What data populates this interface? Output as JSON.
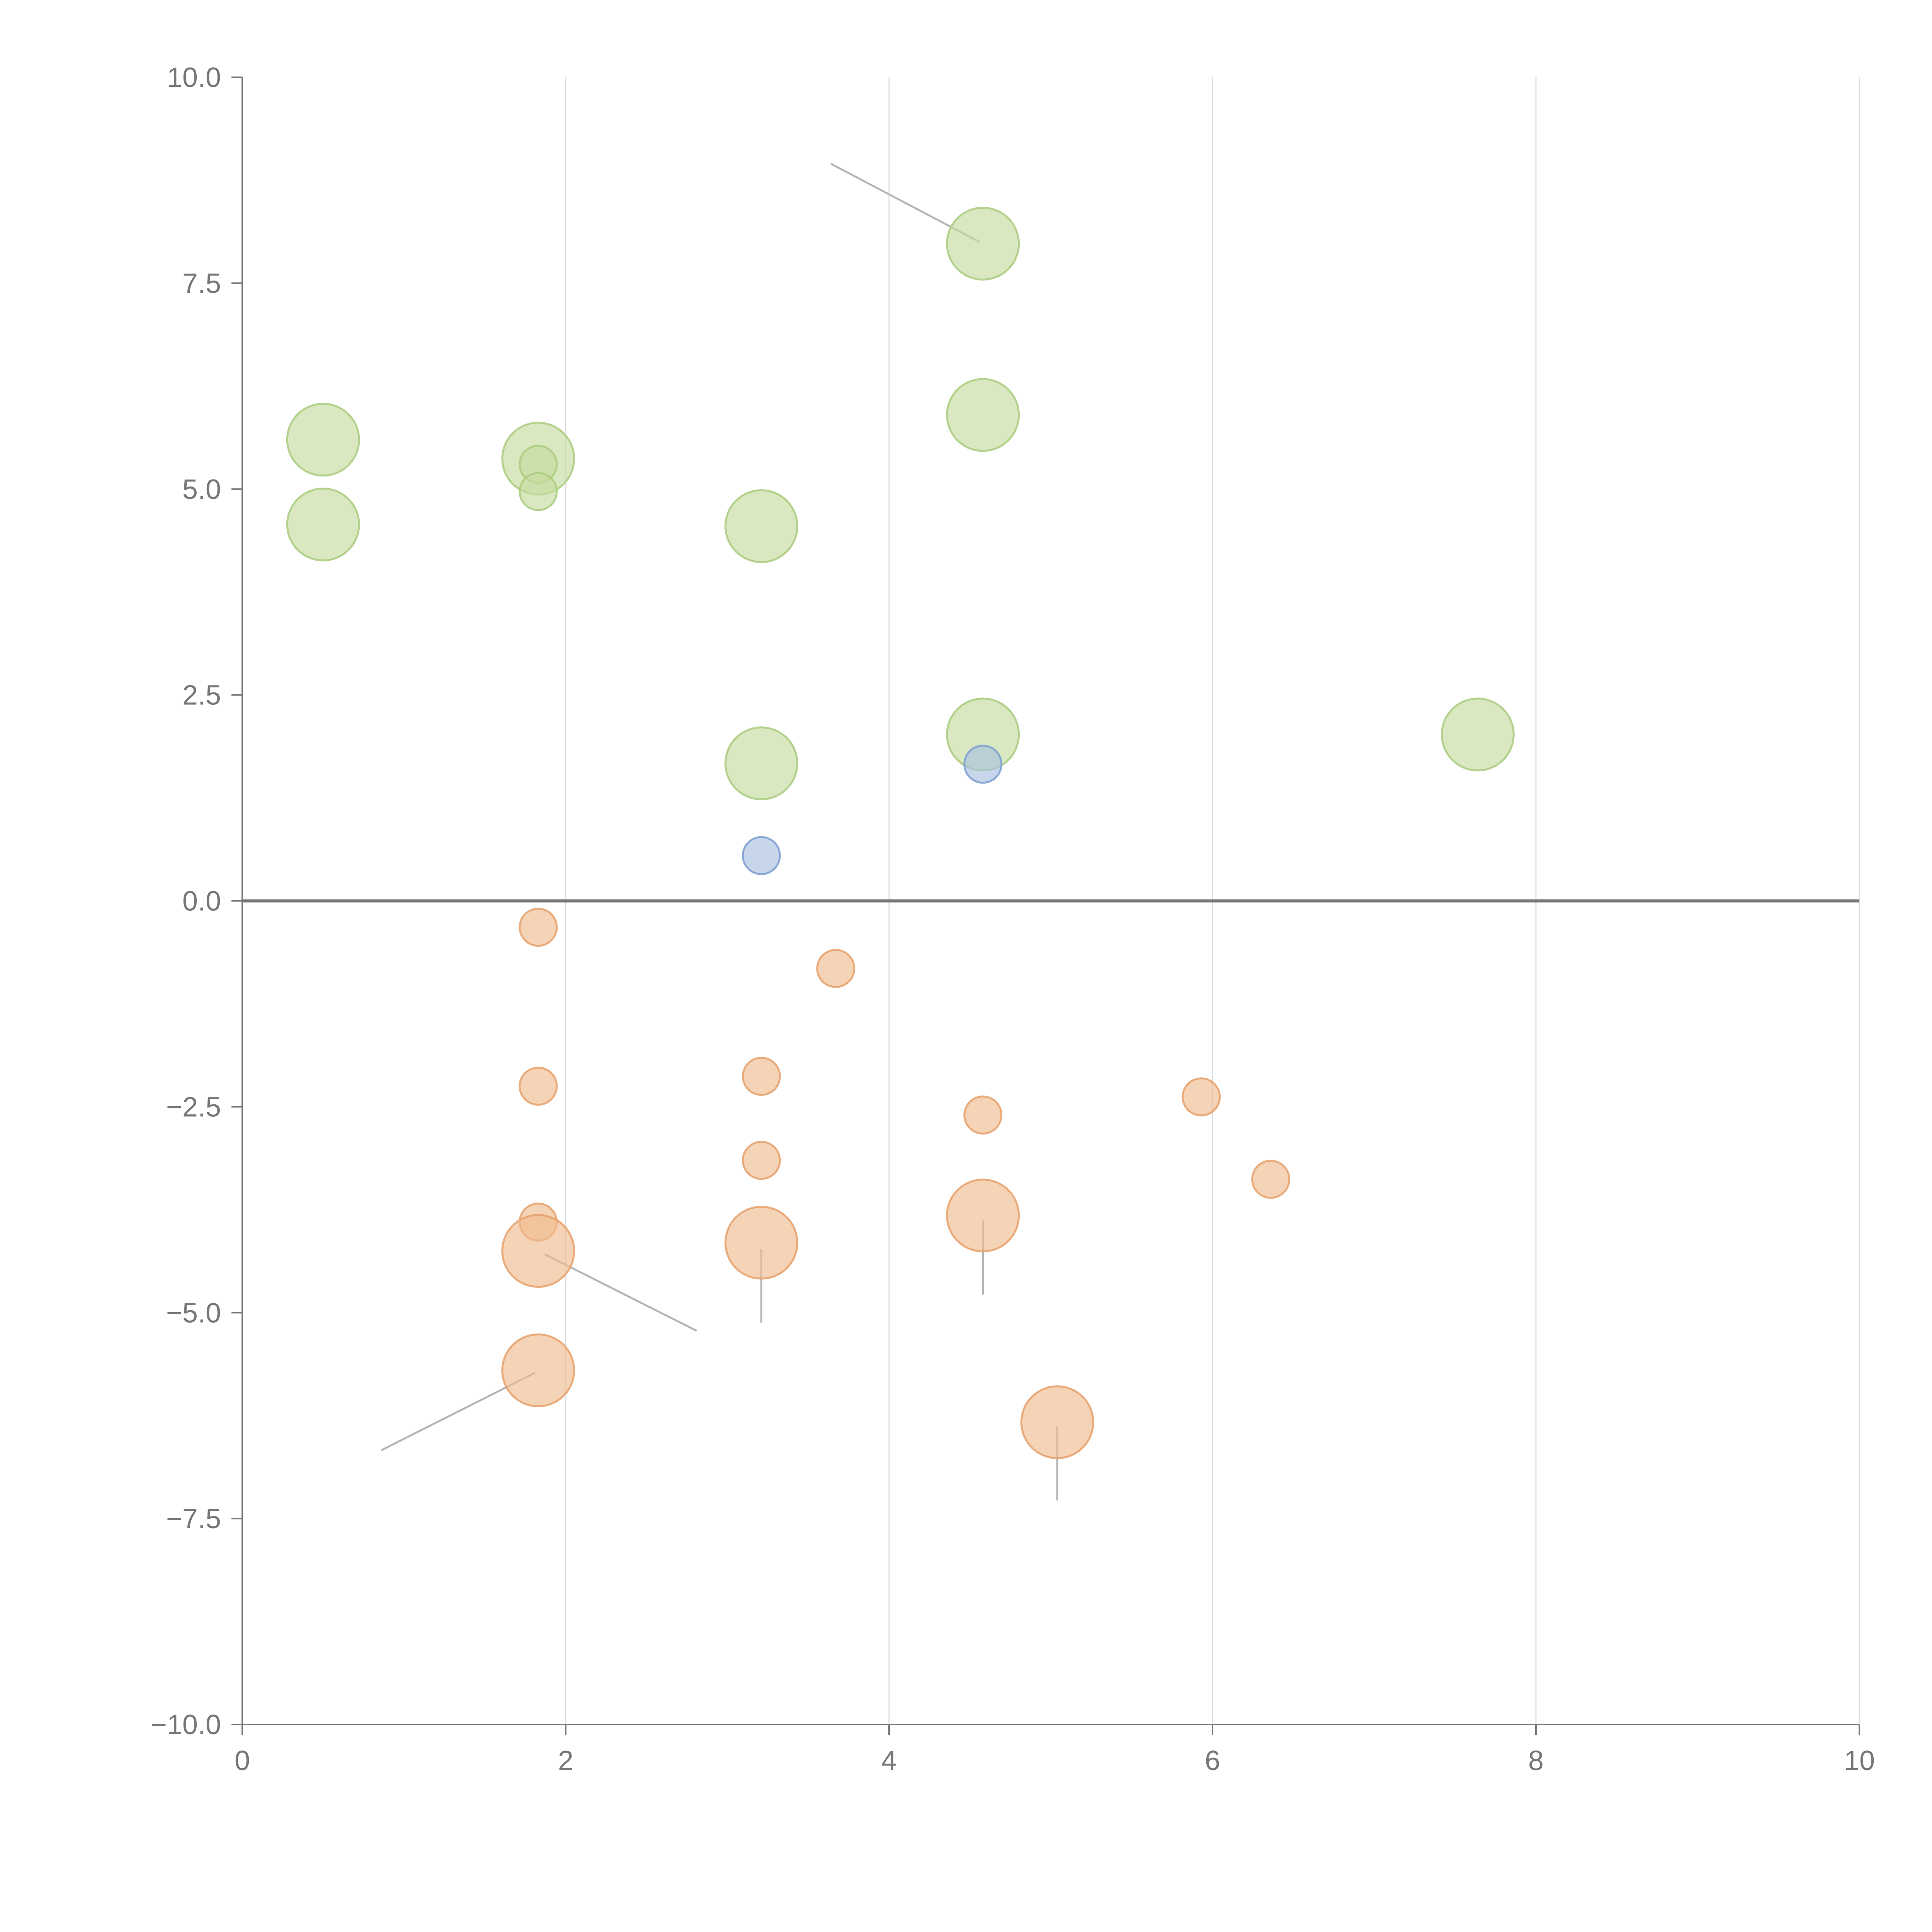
{
  "chart_data": {
    "type": "scatter",
    "subtype": "bubble",
    "title": "",
    "xlabel": "",
    "ylabel": "",
    "xlim": [
      0,
      10
    ],
    "ylim": [
      -10,
      10
    ],
    "x_ticks": [
      0,
      2,
      4,
      6,
      8,
      10
    ],
    "x_tick_labels": [
      "0",
      "2",
      "4",
      "6",
      "8",
      "10"
    ],
    "y_ticks": [
      10,
      7.5,
      5,
      2.5,
      0,
      -2.5,
      -5,
      -7.5,
      -10
    ],
    "y_tick_labels": [
      "10.0",
      "7.5",
      "5.0",
      "2.5",
      "0.0",
      "−2.5",
      "−5.0",
      "−7.5",
      "−10.0"
    ],
    "vertical_grid": true,
    "zero_line": true,
    "colors": {
      "green_fill": "#c5dba0",
      "green_stroke": "#a9cb7e",
      "blue_fill": "#a9c0e0",
      "blue_stroke": "#7c9fd0",
      "orange_fill": "#f0bc8f",
      "orange_stroke": "#e6a06a"
    },
    "series": [
      {
        "name": "green",
        "color_key": "green",
        "points": [
          {
            "x": 0.5,
            "y": 5.6,
            "size": 3
          },
          {
            "x": 0.5,
            "y": 4.57,
            "size": 3
          },
          {
            "x": 1.83,
            "y": 5.37,
            "size": 3
          },
          {
            "x": 1.83,
            "y": 5.3,
            "size": 1
          },
          {
            "x": 1.83,
            "y": 4.97,
            "size": 1
          },
          {
            "x": 3.21,
            "y": 4.55,
            "size": 3
          },
          {
            "x": 3.21,
            "y": 1.67,
            "size": 3
          },
          {
            "x": 4.58,
            "y": 7.98,
            "size": 3
          },
          {
            "x": 4.58,
            "y": 5.9,
            "size": 3
          },
          {
            "x": 4.58,
            "y": 2.02,
            "size": 3
          },
          {
            "x": 7.64,
            "y": 2.02,
            "size": 3
          }
        ]
      },
      {
        "name": "blue",
        "color_key": "blue",
        "points": [
          {
            "x": 3.21,
            "y": 0.55,
            "size": 1
          },
          {
            "x": 4.58,
            "y": 1.66,
            "size": 1
          }
        ]
      },
      {
        "name": "orange",
        "color_key": "orange",
        "points": [
          {
            "x": 1.83,
            "y": -0.32,
            "size": 1
          },
          {
            "x": 1.83,
            "y": -2.25,
            "size": 1
          },
          {
            "x": 1.83,
            "y": -3.9,
            "size": 1
          },
          {
            "x": 1.83,
            "y": -4.25,
            "size": 3
          },
          {
            "x": 1.83,
            "y": -5.7,
            "size": 3
          },
          {
            "x": 3.21,
            "y": -2.13,
            "size": 1
          },
          {
            "x": 3.21,
            "y": -3.15,
            "size": 1
          },
          {
            "x": 3.21,
            "y": -4.15,
            "size": 3
          },
          {
            "x": 3.67,
            "y": -0.82,
            "size": 1
          },
          {
            "x": 4.58,
            "y": -2.6,
            "size": 1
          },
          {
            "x": 4.58,
            "y": -3.82,
            "size": 3
          },
          {
            "x": 5.04,
            "y": -6.33,
            "size": 3
          },
          {
            "x": 5.93,
            "y": -2.38,
            "size": 1
          },
          {
            "x": 6.36,
            "y": -3.38,
            "size": 1
          }
        ]
      }
    ],
    "leader_lines": [
      {
        "from": [
          3.64,
          8.95
        ],
        "to": [
          4.56,
          8.0
        ]
      },
      {
        "from": [
          1.87,
          -4.29
        ],
        "to": [
          2.81,
          -5.22
        ]
      },
      {
        "from": [
          1.81,
          -5.73
        ],
        "to": [
          0.86,
          -6.67
        ]
      },
      {
        "from": [
          3.21,
          -4.23
        ],
        "to": [
          3.21,
          -5.12
        ]
      },
      {
        "from": [
          4.58,
          -3.88
        ],
        "to": [
          4.58,
          -4.78
        ]
      },
      {
        "from": [
          5.04,
          -6.38
        ],
        "to": [
          5.04,
          -7.28
        ]
      }
    ]
  }
}
